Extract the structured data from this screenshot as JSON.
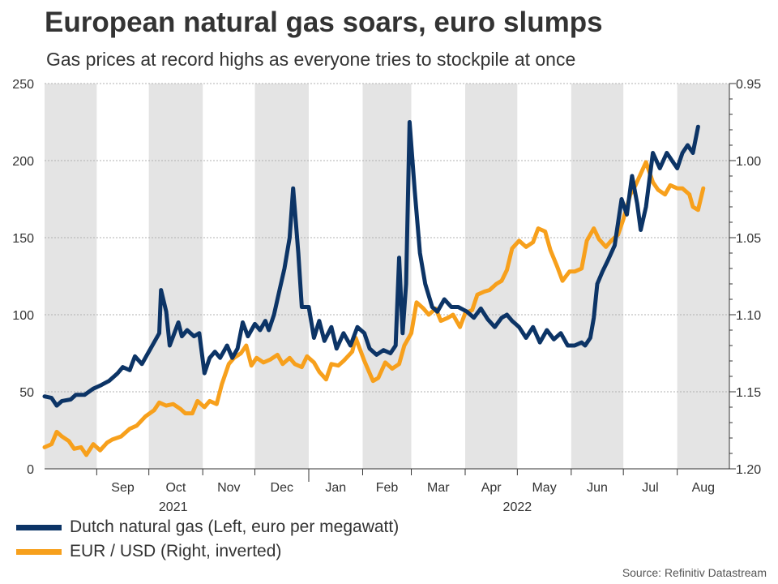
{
  "header": {
    "title": "European natural gas soars, euro slumps",
    "subtitle": "Gas prices at record highs as everyone tries to stockpile at once"
  },
  "source": "Source: Refinitiv Datastream",
  "colors": {
    "gas": "#0c3466",
    "eur": "#f7a01c",
    "shade": "#e4e4e4",
    "grid": "#b0b0b0",
    "axis": "#333333"
  },
  "chart_data": {
    "type": "line",
    "title": "European natural gas soars, euro slumps",
    "x_range": [
      "2021-08-02",
      "2022-08-31"
    ],
    "months": [
      {
        "label": "Sep",
        "start": "2021-09-01",
        "shaded": false
      },
      {
        "label": "Oct",
        "start": "2021-10-01",
        "shaded": true
      },
      {
        "label": "Nov",
        "start": "2021-11-01",
        "shaded": false
      },
      {
        "label": "Dec",
        "start": "2021-12-01",
        "shaded": true
      },
      {
        "label": "Jan",
        "start": "2022-01-01",
        "shaded": false
      },
      {
        "label": "Feb",
        "start": "2022-02-01",
        "shaded": true
      },
      {
        "label": "Mar",
        "start": "2022-03-01",
        "shaded": false
      },
      {
        "label": "Apr",
        "start": "2022-04-01",
        "shaded": true
      },
      {
        "label": "May",
        "start": "2022-05-01",
        "shaded": false
      },
      {
        "label": "Jun",
        "start": "2022-06-01",
        "shaded": true
      },
      {
        "label": "Jul",
        "start": "2022-07-01",
        "shaded": false
      },
      {
        "label": "Aug",
        "start": "2022-08-01",
        "shaded": true
      }
    ],
    "first_band": {
      "start": "2021-08-02",
      "end": "2021-09-01",
      "shaded": true
    },
    "years": [
      {
        "label": "2021",
        "center": "2021-10-15"
      },
      {
        "label": "2022",
        "center": "2022-05-01"
      }
    ],
    "left_axis": {
      "label": "euro per megawatt",
      "min": 0,
      "max": 250,
      "ticks": [
        "0",
        "50",
        "100",
        "150",
        "200",
        "250"
      ]
    },
    "right_axis": {
      "label": "EUR / USD (inverted)",
      "min": 0.95,
      "max": 1.2,
      "inverted": true,
      "ticks": [
        "0.95",
        "1.00",
        "1.05",
        "1.10",
        "1.15",
        "1.20"
      ]
    },
    "series": [
      {
        "name": "Dutch natural gas (Left, euro per megawatt)",
        "axis": "left",
        "color": "#0c3466",
        "points": [
          [
            "2021-08-02",
            47
          ],
          [
            "2021-08-06",
            46
          ],
          [
            "2021-08-09",
            41
          ],
          [
            "2021-08-12",
            44
          ],
          [
            "2021-08-17",
            45
          ],
          [
            "2021-08-20",
            48
          ],
          [
            "2021-08-25",
            48
          ],
          [
            "2021-08-30",
            52
          ],
          [
            "2021-09-03",
            54
          ],
          [
            "2021-09-08",
            57
          ],
          [
            "2021-09-13",
            62
          ],
          [
            "2021-09-16",
            66
          ],
          [
            "2021-09-20",
            64
          ],
          [
            "2021-09-23",
            73
          ],
          [
            "2021-09-27",
            68
          ],
          [
            "2021-09-30",
            74
          ],
          [
            "2021-10-04",
            82
          ],
          [
            "2021-10-07",
            88
          ],
          [
            "2021-10-08",
            116
          ],
          [
            "2021-10-11",
            102
          ],
          [
            "2021-10-13",
            80
          ],
          [
            "2021-10-15",
            86
          ],
          [
            "2021-10-18",
            95
          ],
          [
            "2021-10-20",
            86
          ],
          [
            "2021-10-23",
            90
          ],
          [
            "2021-10-27",
            86
          ],
          [
            "2021-10-30",
            88
          ],
          [
            "2021-11-02",
            62
          ],
          [
            "2021-11-05",
            72
          ],
          [
            "2021-11-08",
            76
          ],
          [
            "2021-11-11",
            72
          ],
          [
            "2021-11-15",
            80
          ],
          [
            "2021-11-18",
            72
          ],
          [
            "2021-11-21",
            78
          ],
          [
            "2021-11-24",
            95
          ],
          [
            "2021-11-27",
            86
          ],
          [
            "2021-12-01",
            94
          ],
          [
            "2021-12-04",
            90
          ],
          [
            "2021-12-07",
            96
          ],
          [
            "2021-12-09",
            90
          ],
          [
            "2021-12-12",
            100
          ],
          [
            "2021-12-15",
            115
          ],
          [
            "2021-12-18",
            130
          ],
          [
            "2021-12-21",
            150
          ],
          [
            "2021-12-23",
            182
          ],
          [
            "2021-12-26",
            140
          ],
          [
            "2021-12-28",
            105
          ],
          [
            "2022-01-01",
            105
          ],
          [
            "2022-01-04",
            85
          ],
          [
            "2022-01-07",
            96
          ],
          [
            "2022-01-10",
            83
          ],
          [
            "2022-01-14",
            92
          ],
          [
            "2022-01-17",
            78
          ],
          [
            "2022-01-21",
            88
          ],
          [
            "2022-01-25",
            80
          ],
          [
            "2022-01-29",
            92
          ],
          [
            "2022-02-02",
            88
          ],
          [
            "2022-02-05",
            78
          ],
          [
            "2022-02-09",
            74
          ],
          [
            "2022-02-13",
            77
          ],
          [
            "2022-02-17",
            75
          ],
          [
            "2022-02-20",
            80
          ],
          [
            "2022-02-22",
            137
          ],
          [
            "2022-02-24",
            88
          ],
          [
            "2022-02-26",
            120
          ],
          [
            "2022-02-28",
            225
          ],
          [
            "2022-03-03",
            180
          ],
          [
            "2022-03-06",
            140
          ],
          [
            "2022-03-09",
            120
          ],
          [
            "2022-03-13",
            105
          ],
          [
            "2022-03-16",
            102
          ],
          [
            "2022-03-20",
            110
          ],
          [
            "2022-03-24",
            105
          ],
          [
            "2022-03-28",
            105
          ],
          [
            "2022-04-02",
            102
          ],
          [
            "2022-04-06",
            98
          ],
          [
            "2022-04-10",
            104
          ],
          [
            "2022-04-14",
            97
          ],
          [
            "2022-04-18",
            92
          ],
          [
            "2022-04-22",
            98
          ],
          [
            "2022-04-25",
            100
          ],
          [
            "2022-04-28",
            96
          ],
          [
            "2022-05-02",
            92
          ],
          [
            "2022-05-06",
            85
          ],
          [
            "2022-05-10",
            92
          ],
          [
            "2022-05-14",
            82
          ],
          [
            "2022-05-18",
            90
          ],
          [
            "2022-05-22",
            84
          ],
          [
            "2022-05-26",
            88
          ],
          [
            "2022-05-30",
            80
          ],
          [
            "2022-06-03",
            80
          ],
          [
            "2022-06-07",
            82
          ],
          [
            "2022-06-09",
            80
          ],
          [
            "2022-06-12",
            85
          ],
          [
            "2022-06-14",
            98
          ],
          [
            "2022-06-16",
            120
          ],
          [
            "2022-06-19",
            128
          ],
          [
            "2022-06-22",
            135
          ],
          [
            "2022-06-26",
            145
          ],
          [
            "2022-06-30",
            175
          ],
          [
            "2022-07-03",
            165
          ],
          [
            "2022-07-06",
            190
          ],
          [
            "2022-07-09",
            172
          ],
          [
            "2022-07-11",
            155
          ],
          [
            "2022-07-14",
            170
          ],
          [
            "2022-07-18",
            205
          ],
          [
            "2022-07-22",
            195
          ],
          [
            "2022-07-26",
            205
          ],
          [
            "2022-07-29",
            200
          ],
          [
            "2022-08-01",
            195
          ],
          [
            "2022-08-04",
            205
          ],
          [
            "2022-08-07",
            210
          ],
          [
            "2022-08-10",
            205
          ],
          [
            "2022-08-13",
            222
          ]
        ]
      },
      {
        "name": "EUR / USD (Right, inverted)",
        "axis": "right",
        "color": "#f7a01c",
        "points": [
          [
            "2021-08-02",
            1.186
          ],
          [
            "2021-08-06",
            1.184
          ],
          [
            "2021-08-09",
            1.176
          ],
          [
            "2021-08-12",
            1.179
          ],
          [
            "2021-08-16",
            1.182
          ],
          [
            "2021-08-19",
            1.187
          ],
          [
            "2021-08-23",
            1.186
          ],
          [
            "2021-08-26",
            1.191
          ],
          [
            "2021-08-30",
            1.184
          ],
          [
            "2021-09-03",
            1.188
          ],
          [
            "2021-09-07",
            1.183
          ],
          [
            "2021-09-10",
            1.181
          ],
          [
            "2021-09-15",
            1.179
          ],
          [
            "2021-09-20",
            1.174
          ],
          [
            "2021-09-24",
            1.172
          ],
          [
            "2021-09-29",
            1.166
          ],
          [
            "2021-10-04",
            1.162
          ],
          [
            "2021-10-07",
            1.157
          ],
          [
            "2021-10-11",
            1.159
          ],
          [
            "2021-10-15",
            1.158
          ],
          [
            "2021-10-19",
            1.161
          ],
          [
            "2021-10-22",
            1.164
          ],
          [
            "2021-10-26",
            1.164
          ],
          [
            "2021-10-29",
            1.156
          ],
          [
            "2021-11-02",
            1.16
          ],
          [
            "2021-11-05",
            1.156
          ],
          [
            "2021-11-09",
            1.158
          ],
          [
            "2021-11-12",
            1.145
          ],
          [
            "2021-11-16",
            1.132
          ],
          [
            "2021-11-19",
            1.128
          ],
          [
            "2021-11-23",
            1.125
          ],
          [
            "2021-11-26",
            1.12
          ],
          [
            "2021-11-29",
            1.133
          ],
          [
            "2021-12-02",
            1.128
          ],
          [
            "2021-12-06",
            1.131
          ],
          [
            "2021-12-10",
            1.129
          ],
          [
            "2021-12-14",
            1.126
          ],
          [
            "2021-12-17",
            1.132
          ],
          [
            "2021-12-21",
            1.128
          ],
          [
            "2021-12-24",
            1.132
          ],
          [
            "2021-12-28",
            1.134
          ],
          [
            "2021-12-31",
            1.127
          ],
          [
            "2022-01-04",
            1.131
          ],
          [
            "2022-01-07",
            1.137
          ],
          [
            "2022-01-11",
            1.142
          ],
          [
            "2022-01-14",
            1.132
          ],
          [
            "2022-01-18",
            1.133
          ],
          [
            "2022-01-21",
            1.13
          ],
          [
            "2022-01-26",
            1.124
          ],
          [
            "2022-01-28",
            1.115
          ],
          [
            "2022-02-02",
            1.13
          ],
          [
            "2022-02-07",
            1.143
          ],
          [
            "2022-02-10",
            1.141
          ],
          [
            "2022-02-14",
            1.131
          ],
          [
            "2022-02-18",
            1.135
          ],
          [
            "2022-02-22",
            1.132
          ],
          [
            "2022-02-25",
            1.12
          ],
          [
            "2022-03-01",
            1.112
          ],
          [
            "2022-03-04",
            1.092
          ],
          [
            "2022-03-08",
            1.096
          ],
          [
            "2022-03-11",
            1.1
          ],
          [
            "2022-03-15",
            1.096
          ],
          [
            "2022-03-18",
            1.104
          ],
          [
            "2022-03-22",
            1.102
          ],
          [
            "2022-03-25",
            1.1
          ],
          [
            "2022-03-29",
            1.108
          ],
          [
            "2022-04-01",
            1.099
          ],
          [
            "2022-04-05",
            1.097
          ],
          [
            "2022-04-08",
            1.087
          ],
          [
            "2022-04-12",
            1.085
          ],
          [
            "2022-04-15",
            1.084
          ],
          [
            "2022-04-19",
            1.08
          ],
          [
            "2022-04-22",
            1.078
          ],
          [
            "2022-04-25",
            1.071
          ],
          [
            "2022-04-28",
            1.057
          ],
          [
            "2022-05-02",
            1.052
          ],
          [
            "2022-05-06",
            1.056
          ],
          [
            "2022-05-10",
            1.053
          ],
          [
            "2022-05-13",
            1.044
          ],
          [
            "2022-05-17",
            1.046
          ],
          [
            "2022-05-20",
            1.058
          ],
          [
            "2022-05-24",
            1.069
          ],
          [
            "2022-05-27",
            1.078
          ],
          [
            "2022-05-31",
            1.072
          ],
          [
            "2022-06-03",
            1.072
          ],
          [
            "2022-06-07",
            1.07
          ],
          [
            "2022-06-10",
            1.052
          ],
          [
            "2022-06-14",
            1.044
          ],
          [
            "2022-06-17",
            1.051
          ],
          [
            "2022-06-21",
            1.056
          ],
          [
            "2022-06-24",
            1.052
          ],
          [
            "2022-06-28",
            1.048
          ],
          [
            "2022-07-01",
            1.038
          ],
          [
            "2022-07-05",
            1.022
          ],
          [
            "2022-07-08",
            1.016
          ],
          [
            "2022-07-12",
            1.006
          ],
          [
            "2022-07-14",
            1.001
          ],
          [
            "2022-07-18",
            1.014
          ],
          [
            "2022-07-21",
            1.019
          ],
          [
            "2022-07-25",
            1.022
          ],
          [
            "2022-07-28",
            1.016
          ],
          [
            "2022-08-01",
            1.018
          ],
          [
            "2022-08-04",
            1.018
          ],
          [
            "2022-08-08",
            1.022
          ],
          [
            "2022-08-10",
            1.03
          ],
          [
            "2022-08-13",
            1.032
          ],
          [
            "2022-08-16",
            1.018
          ]
        ]
      }
    ]
  },
  "legend": [
    {
      "label": "Dutch natural gas (Left, euro per megawatt)",
      "color": "#0c3466"
    },
    {
      "label": "EUR / USD (Right, inverted)",
      "color": "#f7a01c"
    }
  ]
}
